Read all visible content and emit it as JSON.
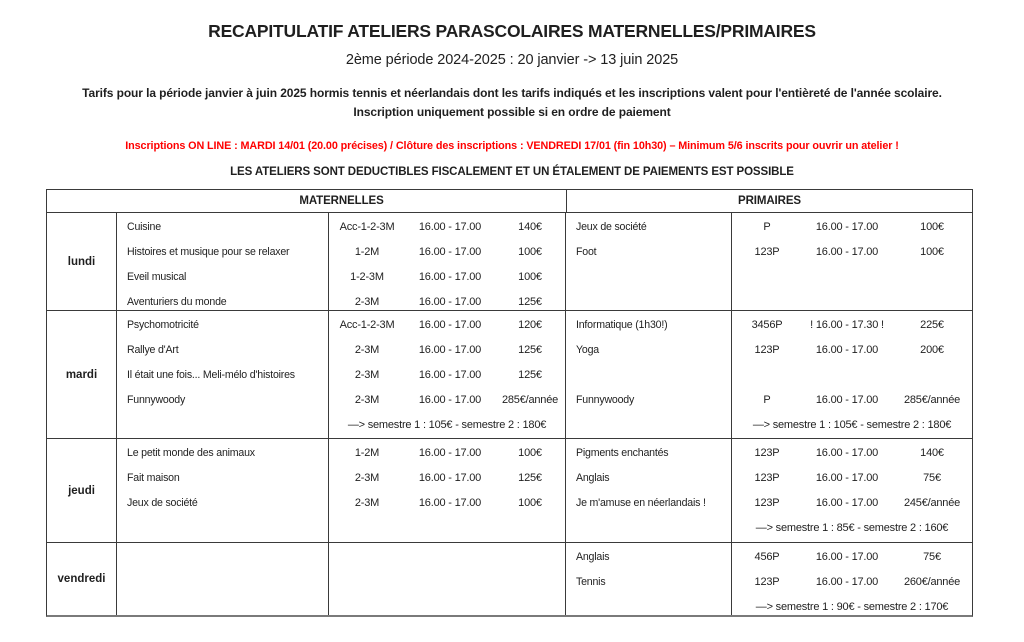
{
  "colors": {
    "text": "#1f1f1f",
    "accent_red": "#ff0000",
    "table_border": "#3a3a3a",
    "page_background": "#ffffff"
  },
  "header": {
    "title": "RECAPITULATIF ATELIERS PARASCOLAIRES MATERNELLES/PRIMAIRES",
    "subtitle": "2ème période 2024-2025 : 20 janvier -> 13 juin 2025",
    "tarifs_note": "Tarifs pour la période janvier à juin 2025 hormis tennis et néerlandais dont les tarifs indiqués et les inscriptions valent pour l'entièreté de l'année scolaire. Inscription uniquement possible si en ordre de paiement",
    "inscriptions_note": "Inscriptions ON LINE : MARDI 14/01 (20.00 précises) / Clôture des inscriptions : VENDREDI 17/01 (fin 10h30) – Minimum 5/6 inscrits pour ouvrir un atelier !",
    "deductible_note": "LES ATELIERS SONT DEDUCTIBLES FISCALEMENT ET UN ÉTALEMENT DE PAIEMENTS EST POSSIBLE"
  },
  "table": {
    "column_headers": {
      "maternelles": "MATERNELLES",
      "primaires": "PRIMAIRES"
    },
    "rows": [
      {
        "day": "lundi",
        "maternelles": {
          "activities": [
            {
              "name": "Cuisine",
              "group": "Acc-1-2-3M",
              "time": "16.00 - 17.00",
              "price": "140€"
            },
            {
              "name": "Histoires et musique pour se relaxer",
              "group": "1-2M",
              "time": "16.00 - 17.00",
              "price": "100€"
            },
            {
              "name": "Eveil musical",
              "group": "1-2-3M",
              "time": "16.00 - 17.00",
              "price": "100€"
            },
            {
              "name": "Aventuriers du monde",
              "group": "2-3M",
              "time": "16.00 - 17.00",
              "price": "125€"
            }
          ],
          "semester_note": ""
        },
        "primaires": {
          "activities": [
            {
              "name": "Jeux de société",
              "group": "P",
              "time": "16.00 - 17.00",
              "price": "100€"
            },
            {
              "name": "Foot",
              "group": "123P",
              "time": "16.00 - 17.00",
              "price": "100€"
            }
          ],
          "semester_note": ""
        }
      },
      {
        "day": "mardi",
        "maternelles": {
          "activities": [
            {
              "name": "Psychomotricité",
              "group": "Acc-1-2-3M",
              "time": "16.00 - 17.00",
              "price": "120€"
            },
            {
              "name": "Rallye d'Art",
              "group": "2-3M",
              "time": "16.00 - 17.00",
              "price": "125€"
            },
            {
              "name": "Il était une fois... Meli-mélo d'histoires",
              "group": "2-3M",
              "time": "16.00 - 17.00",
              "price": "125€"
            },
            {
              "name": "Funnywoody",
              "group": "2-3M",
              "time": "16.00 - 17.00",
              "price": "285€/année"
            }
          ],
          "semester_note": "—> semestre 1 : 105€ - semestre 2 : 180€"
        },
        "primaires": {
          "activities": [
            {
              "name": "Informatique (1h30!)",
              "group": "3456P",
              "time": "! 16.00 - 17.30 !",
              "price": "225€"
            },
            {
              "name": "Yoga",
              "group": "123P",
              "time": "16.00 - 17.00",
              "price": "200€"
            },
            {
              "name": "",
              "group": "",
              "time": "",
              "price": ""
            },
            {
              "name": "Funnywoody",
              "group": "P",
              "time": "16.00 - 17.00",
              "price": "285€/année"
            }
          ],
          "semester_note": "—> semestre 1 : 105€ - semestre 2 : 180€"
        }
      },
      {
        "day": "jeudi",
        "maternelles": {
          "activities": [
            {
              "name": "Le petit monde des animaux",
              "group": "1-2M",
              "time": "16.00 - 17.00",
              "price": "100€"
            },
            {
              "name": "Fait maison",
              "group": "2-3M",
              "time": "16.00 - 17.00",
              "price": "125€"
            },
            {
              "name": "Jeux de société",
              "group": "2-3M",
              "time": "16.00 - 17.00",
              "price": "100€"
            }
          ],
          "semester_note": ""
        },
        "primaires": {
          "activities": [
            {
              "name": "Pigments enchantés",
              "group": "123P",
              "time": "16.00 - 17.00",
              "price": "140€"
            },
            {
              "name": "Anglais",
              "group": "123P",
              "time": "16.00 - 17.00",
              "price": "75€"
            },
            {
              "name": "Je m'amuse en néerlandais !",
              "group": "123P",
              "time": "16.00 - 17.00",
              "price": "245€/année"
            }
          ],
          "semester_note": "—> semestre 1 : 85€ - semestre 2 : 160€"
        }
      },
      {
        "day": "vendredi",
        "maternelles": {
          "activities": [],
          "semester_note": ""
        },
        "primaires": {
          "activities": [
            {
              "name": "Anglais",
              "group": "456P",
              "time": "16.00 - 17.00",
              "price": "75€"
            },
            {
              "name": "Tennis",
              "group": "123P",
              "time": "16.00 - 17.00",
              "price": "260€/année"
            }
          ],
          "semester_note": "—> semestre 1 : 90€ - semestre 2 : 170€"
        }
      }
    ]
  }
}
